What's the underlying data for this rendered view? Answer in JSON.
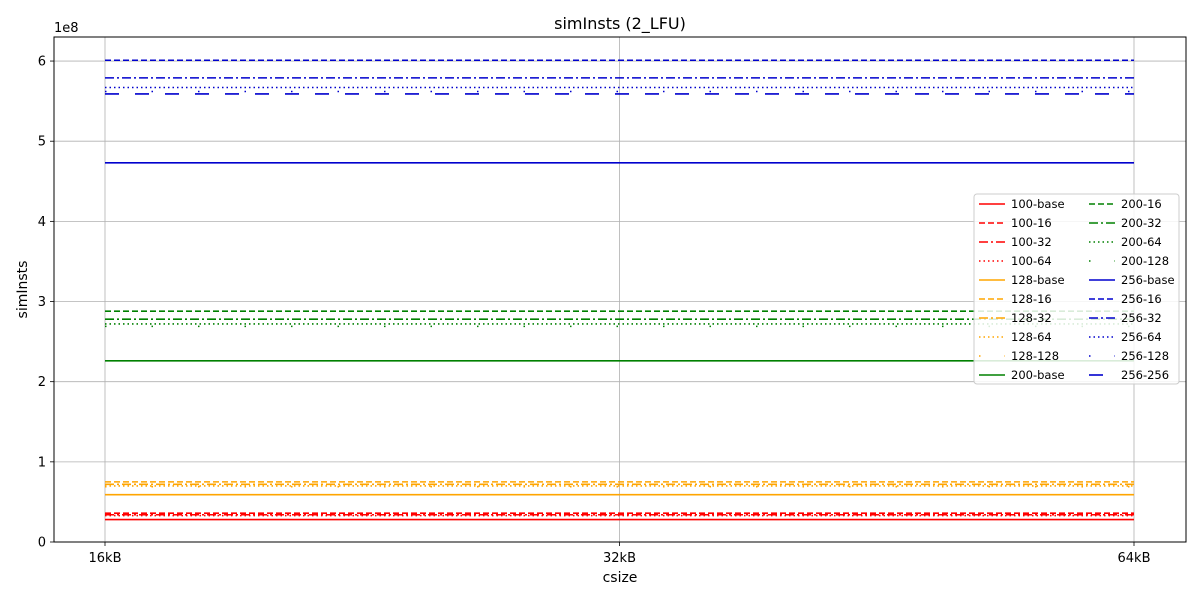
{
  "chart_data": {
    "type": "line",
    "title": "simInsts (2_LFU)",
    "xlabel": "csize",
    "ylabel": "simInsts",
    "y_offset_text": "1e8",
    "x": [
      "16kB",
      "32kB",
      "64kB"
    ],
    "ylim": [
      0,
      6.3
    ],
    "yticks": [
      0,
      1,
      2,
      3,
      4,
      5,
      6
    ],
    "grid": true,
    "legend_position": "center-right",
    "legend_columns": 2,
    "series": [
      {
        "name": "100-base",
        "values": [
          0.28,
          0.28,
          0.28
        ],
        "color": "#ff0000",
        "style": "solid"
      },
      {
        "name": "100-16",
        "values": [
          0.36,
          0.36,
          0.36
        ],
        "color": "#ff0000",
        "style": "dashed"
      },
      {
        "name": "100-32",
        "values": [
          0.34,
          0.34,
          0.34
        ],
        "color": "#ff0000",
        "style": "dashdot"
      },
      {
        "name": "100-64",
        "values": [
          0.33,
          0.33,
          0.33
        ],
        "color": "#ff0000",
        "style": "dotted"
      },
      {
        "name": "128-base",
        "values": [
          0.59,
          0.59,
          0.59
        ],
        "color": "#ffa500",
        "style": "solid"
      },
      {
        "name": "128-16",
        "values": [
          0.75,
          0.75,
          0.75
        ],
        "color": "#ffa500",
        "style": "dashed"
      },
      {
        "name": "128-32",
        "values": [
          0.72,
          0.72,
          0.72
        ],
        "color": "#ffa500",
        "style": "dashdot"
      },
      {
        "name": "128-64",
        "values": [
          0.7,
          0.7,
          0.7
        ],
        "color": "#ffa500",
        "style": "dotted"
      },
      {
        "name": "128-128",
        "values": [
          0.69,
          0.69,
          0.69
        ],
        "color": "#ffa500",
        "style": "sparse"
      },
      {
        "name": "200-base",
        "values": [
          2.26,
          2.26,
          2.26
        ],
        "color": "#008000",
        "style": "solid"
      },
      {
        "name": "200-16",
        "values": [
          2.88,
          2.88,
          2.88
        ],
        "color": "#008000",
        "style": "dashed"
      },
      {
        "name": "200-32",
        "values": [
          2.78,
          2.78,
          2.78
        ],
        "color": "#008000",
        "style": "dashdot"
      },
      {
        "name": "200-64",
        "values": [
          2.72,
          2.72,
          2.72
        ],
        "color": "#008000",
        "style": "dotted"
      },
      {
        "name": "200-128",
        "values": [
          2.69,
          2.69,
          2.69
        ],
        "color": "#008000",
        "style": "sparse"
      },
      {
        "name": "256-base",
        "values": [
          4.73,
          4.73,
          4.73
        ],
        "color": "#0000cd",
        "style": "solid"
      },
      {
        "name": "256-16",
        "values": [
          6.01,
          6.01,
          6.01
        ],
        "color": "#0000cd",
        "style": "dashed"
      },
      {
        "name": "256-32",
        "values": [
          5.79,
          5.79,
          5.79
        ],
        "color": "#0000cd",
        "style": "dashdot"
      },
      {
        "name": "256-64",
        "values": [
          5.67,
          5.67,
          5.67
        ],
        "color": "#0000cd",
        "style": "dotted"
      },
      {
        "name": "256-128",
        "values": [
          5.62,
          5.62,
          5.62
        ],
        "color": "#0000cd",
        "style": "sparse"
      },
      {
        "name": "256-256",
        "values": [
          5.59,
          5.59,
          5.59
        ],
        "color": "#0000cd",
        "style": "longdash"
      }
    ]
  }
}
